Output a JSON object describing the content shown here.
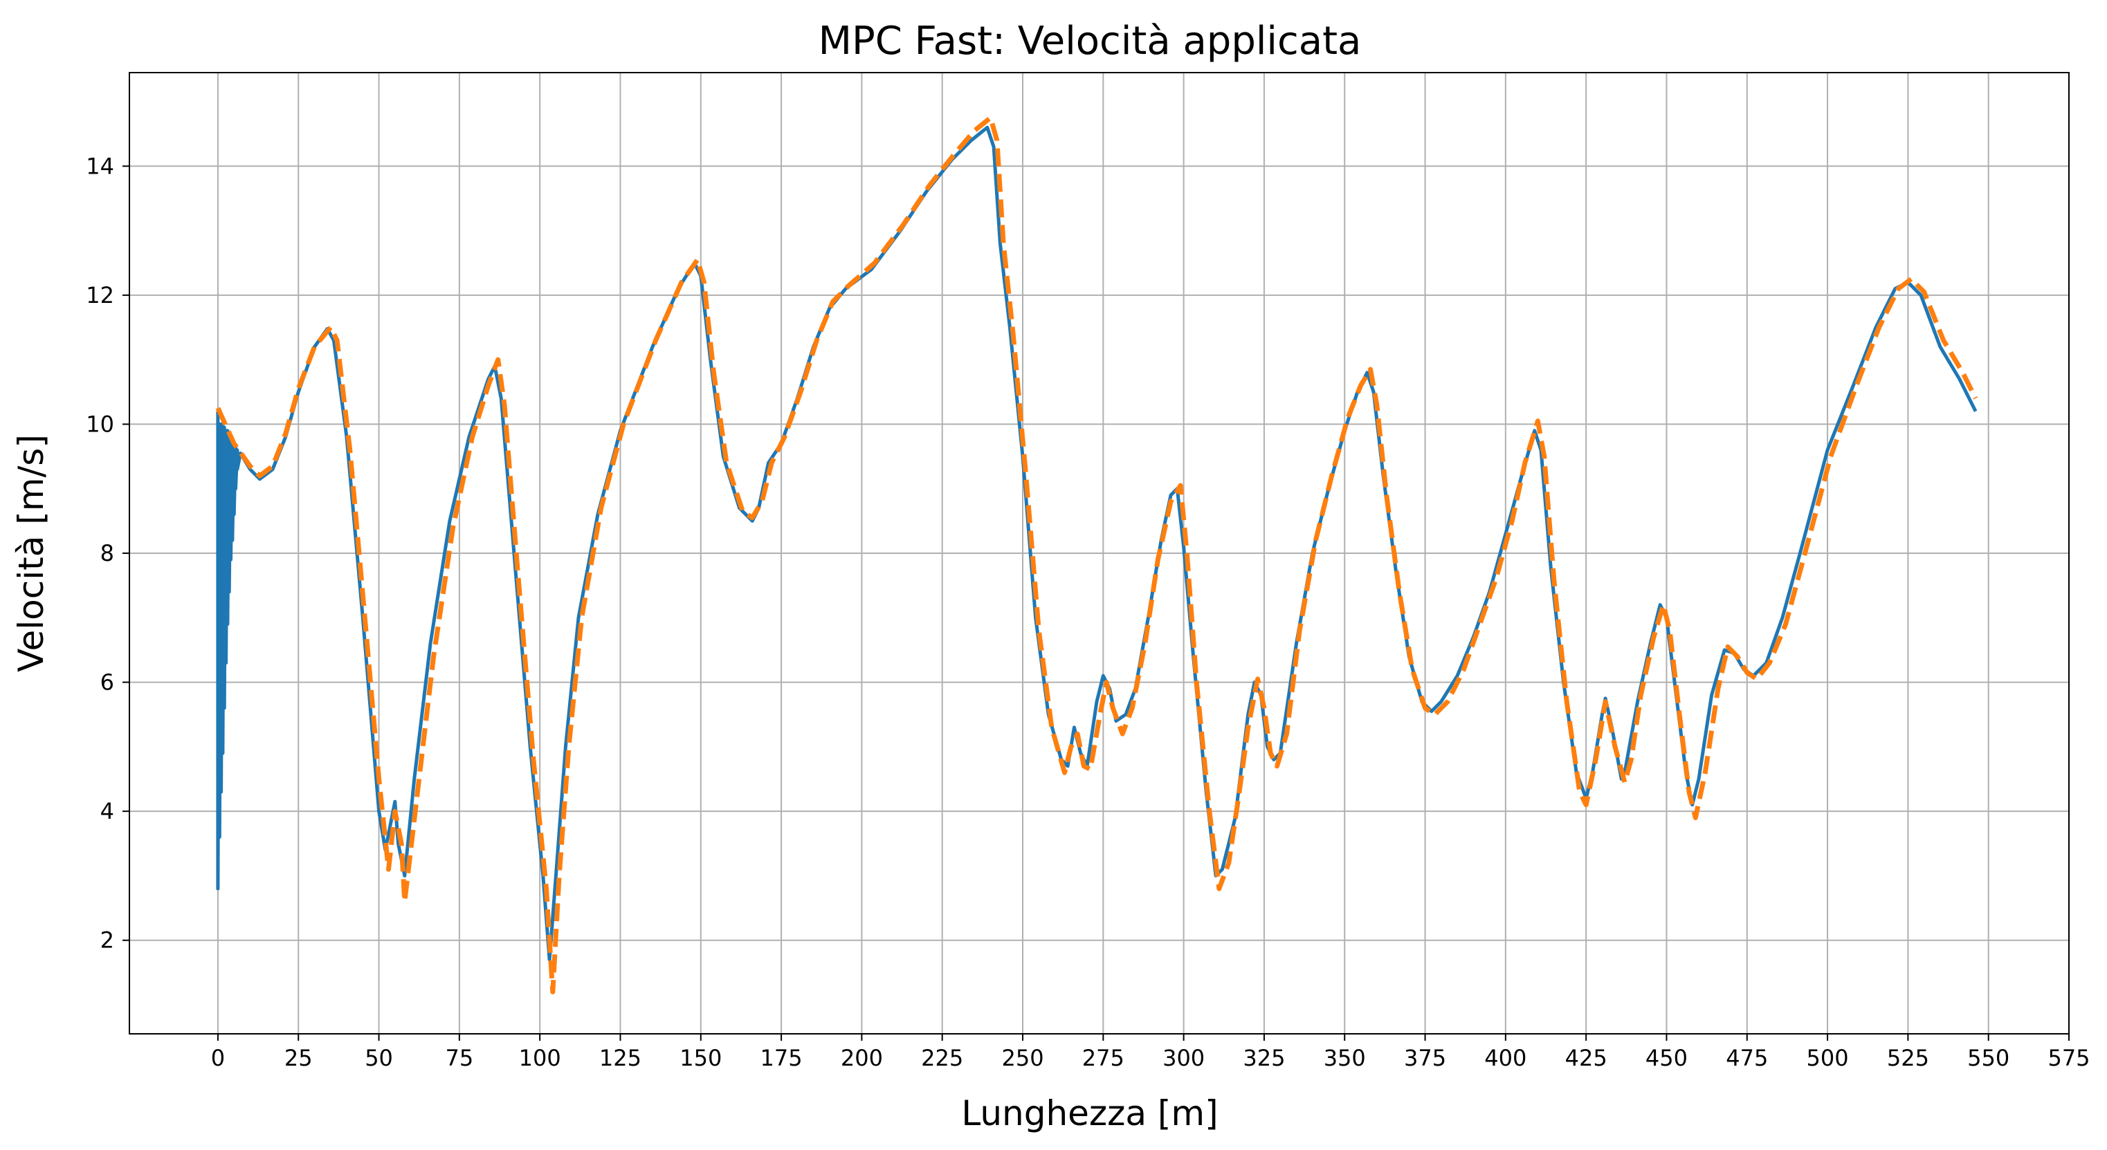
{
  "chart_data": {
    "type": "line",
    "title": "MPC Fast: Velocità applicata",
    "xlabel": "Lunghezza [m]",
    "ylabel": "Velocità [m/s]",
    "xlim": [
      -27.5,
      575
    ],
    "ylim": [
      0.55,
      15.45
    ],
    "xticks": [
      0,
      25,
      50,
      75,
      100,
      125,
      150,
      175,
      200,
      225,
      250,
      275,
      300,
      325,
      350,
      375,
      400,
      425,
      450,
      475,
      500,
      525,
      550,
      575
    ],
    "yticks": [
      2,
      4,
      6,
      8,
      10,
      12,
      14
    ],
    "grid": true,
    "series": [
      {
        "color": "#1f77b4",
        "style": "solid",
        "points": [
          [
            0,
            10.2
          ],
          [
            0,
            2.8
          ],
          [
            0.5,
            10.0
          ],
          [
            0.5,
            3.6
          ],
          [
            1,
            10.0
          ],
          [
            1,
            4.3
          ],
          [
            1.5,
            10.0
          ],
          [
            1.5,
            4.9
          ],
          [
            2,
            9.95
          ],
          [
            2,
            5.6
          ],
          [
            2.5,
            9.9
          ],
          [
            2.5,
            6.3
          ],
          [
            3,
            9.9
          ],
          [
            3,
            6.9
          ],
          [
            3.5,
            9.85
          ],
          [
            3.5,
            7.4
          ],
          [
            4,
            9.8
          ],
          [
            4,
            7.9
          ],
          [
            4.5,
            9.75
          ],
          [
            4.5,
            8.2
          ],
          [
            5,
            9.7
          ],
          [
            5,
            8.6
          ],
          [
            5.5,
            9.65
          ],
          [
            5.5,
            9.0
          ],
          [
            6,
            9.6
          ],
          [
            6,
            9.3
          ],
          [
            7,
            9.55
          ],
          [
            10,
            9.3
          ],
          [
            13,
            9.15
          ],
          [
            17,
            9.3
          ],
          [
            21,
            9.8
          ],
          [
            25,
            10.5
          ],
          [
            30,
            11.2
          ],
          [
            34,
            11.48
          ],
          [
            36,
            11.3
          ],
          [
            40,
            9.8
          ],
          [
            45,
            7.0
          ],
          [
            50,
            4.0
          ],
          [
            52,
            3.4
          ],
          [
            54,
            3.9
          ],
          [
            55,
            4.15
          ],
          [
            56,
            3.5
          ],
          [
            58,
            3.0
          ],
          [
            61,
            4.5
          ],
          [
            66,
            6.6
          ],
          [
            72,
            8.5
          ],
          [
            78,
            9.8
          ],
          [
            84,
            10.7
          ],
          [
            86,
            10.9
          ],
          [
            88,
            10.4
          ],
          [
            92,
            8.0
          ],
          [
            97,
            5.0
          ],
          [
            101,
            3.0
          ],
          [
            103,
            1.7
          ],
          [
            105,
            3.0
          ],
          [
            108,
            5.0
          ],
          [
            112,
            7.0
          ],
          [
            118,
            8.6
          ],
          [
            125,
            9.9
          ],
          [
            135,
            11.2
          ],
          [
            143,
            12.1
          ],
          [
            148,
            12.5
          ],
          [
            150,
            12.3
          ],
          [
            153,
            11.0
          ],
          [
            157,
            9.5
          ],
          [
            162,
            8.7
          ],
          [
            166,
            8.5
          ],
          [
            168,
            8.7
          ],
          [
            171,
            9.4
          ],
          [
            175,
            9.7
          ],
          [
            180,
            10.4
          ],
          [
            185,
            11.2
          ],
          [
            190,
            11.8
          ],
          [
            195,
            12.1
          ],
          [
            203,
            12.4
          ],
          [
            212,
            13.0
          ],
          [
            220,
            13.6
          ],
          [
            228,
            14.1
          ],
          [
            234,
            14.4
          ],
          [
            239,
            14.6
          ],
          [
            241,
            14.3
          ],
          [
            243,
            12.8
          ],
          [
            246,
            11.5
          ],
          [
            250,
            9.5
          ],
          [
            254,
            7.0
          ],
          [
            258,
            5.5
          ],
          [
            262,
            4.8
          ],
          [
            264,
            4.7
          ],
          [
            266,
            5.3
          ],
          [
            268,
            4.9
          ],
          [
            270,
            4.7
          ],
          [
            273,
            5.7
          ],
          [
            275,
            6.1
          ],
          [
            277,
            5.9
          ],
          [
            279,
            5.4
          ],
          [
            282,
            5.5
          ],
          [
            285,
            5.9
          ],
          [
            289,
            7.0
          ],
          [
            293,
            8.2
          ],
          [
            296,
            8.9
          ],
          [
            298,
            9.0
          ],
          [
            300,
            8.1
          ],
          [
            303,
            6.4
          ],
          [
            307,
            4.3
          ],
          [
            310,
            3.0
          ],
          [
            312,
            3.1
          ],
          [
            316,
            3.9
          ],
          [
            320,
            5.5
          ],
          [
            322,
            6.0
          ],
          [
            324,
            5.8
          ],
          [
            326,
            5.0
          ],
          [
            328,
            4.8
          ],
          [
            330,
            4.9
          ],
          [
            335,
            6.6
          ],
          [
            340,
            8.0
          ],
          [
            345,
            9.0
          ],
          [
            350,
            9.9
          ],
          [
            354,
            10.5
          ],
          [
            357,
            10.8
          ],
          [
            359,
            10.5
          ],
          [
            362,
            9.2
          ],
          [
            366,
            7.7
          ],
          [
            370,
            6.4
          ],
          [
            374,
            5.7
          ],
          [
            377,
            5.55
          ],
          [
            380,
            5.7
          ],
          [
            385,
            6.1
          ],
          [
            390,
            6.7
          ],
          [
            395,
            7.4
          ],
          [
            400,
            8.3
          ],
          [
            405,
            9.2
          ],
          [
            409,
            9.9
          ],
          [
            411,
            9.6
          ],
          [
            414,
            7.8
          ],
          [
            418,
            6.0
          ],
          [
            422,
            4.6
          ],
          [
            425,
            4.2
          ],
          [
            427,
            4.6
          ],
          [
            430,
            5.5
          ],
          [
            431,
            5.75
          ],
          [
            433,
            5.3
          ],
          [
            436,
            4.5
          ],
          [
            437,
            4.6
          ],
          [
            441,
            5.7
          ],
          [
            445,
            6.6
          ],
          [
            448,
            7.2
          ],
          [
            450,
            7.0
          ],
          [
            453,
            5.8
          ],
          [
            456,
            4.6
          ],
          [
            458,
            4.1
          ],
          [
            460,
            4.5
          ],
          [
            464,
            5.8
          ],
          [
            468,
            6.5
          ],
          [
            471,
            6.45
          ],
          [
            474,
            6.2
          ],
          [
            477,
            6.1
          ],
          [
            481,
            6.3
          ],
          [
            486,
            7.0
          ],
          [
            492,
            8.1
          ],
          [
            500,
            9.6
          ],
          [
            508,
            10.6
          ],
          [
            515,
            11.5
          ],
          [
            521,
            12.1
          ],
          [
            525,
            12.2
          ],
          [
            529,
            12.0
          ],
          [
            535,
            11.2
          ],
          [
            541,
            10.7
          ],
          [
            546,
            10.2
          ]
        ]
      },
      {
        "color": "#ff7f0e",
        "style": "dashed",
        "points": [
          [
            0,
            10.25
          ],
          [
            5,
            9.7
          ],
          [
            10,
            9.35
          ],
          [
            13,
            9.2
          ],
          [
            17,
            9.35
          ],
          [
            21,
            9.85
          ],
          [
            25,
            10.55
          ],
          [
            30,
            11.2
          ],
          [
            35,
            11.5
          ],
          [
            37,
            11.3
          ],
          [
            41,
            9.6
          ],
          [
            46,
            6.8
          ],
          [
            50,
            4.5
          ],
          [
            53,
            3.1
          ],
          [
            55,
            4.0
          ],
          [
            57,
            3.5
          ],
          [
            58,
            2.6
          ],
          [
            62,
            4.3
          ],
          [
            67,
            6.4
          ],
          [
            73,
            8.4
          ],
          [
            79,
            9.8
          ],
          [
            84,
            10.6
          ],
          [
            87,
            11.0
          ],
          [
            89,
            10.3
          ],
          [
            93,
            7.8
          ],
          [
            98,
            4.8
          ],
          [
            102,
            2.8
          ],
          [
            104,
            1.2
          ],
          [
            106,
            3.0
          ],
          [
            109,
            5.0
          ],
          [
            113,
            7.0
          ],
          [
            119,
            8.7
          ],
          [
            126,
            10.0
          ],
          [
            136,
            11.3
          ],
          [
            144,
            12.2
          ],
          [
            149,
            12.55
          ],
          [
            151,
            12.2
          ],
          [
            154,
            10.8
          ],
          [
            158,
            9.4
          ],
          [
            163,
            8.65
          ],
          [
            166,
            8.55
          ],
          [
            169,
            8.8
          ],
          [
            172,
            9.4
          ],
          [
            176,
            9.8
          ],
          [
            181,
            10.5
          ],
          [
            186,
            11.3
          ],
          [
            191,
            11.9
          ],
          [
            196,
            12.15
          ],
          [
            204,
            12.5
          ],
          [
            213,
            13.1
          ],
          [
            221,
            13.7
          ],
          [
            229,
            14.2
          ],
          [
            235,
            14.55
          ],
          [
            240,
            14.75
          ],
          [
            242,
            14.4
          ],
          [
            244,
            12.8
          ],
          [
            247,
            11.4
          ],
          [
            251,
            9.2
          ],
          [
            255,
            6.8
          ],
          [
            259,
            5.3
          ],
          [
            263,
            4.6
          ],
          [
            265,
            5.0
          ],
          [
            267,
            5.2
          ],
          [
            269,
            4.7
          ],
          [
            271,
            4.65
          ],
          [
            274,
            5.5
          ],
          [
            276,
            6.0
          ],
          [
            278,
            5.6
          ],
          [
            281,
            5.2
          ],
          [
            284,
            5.6
          ],
          [
            288,
            6.6
          ],
          [
            292,
            7.9
          ],
          [
            296,
            8.8
          ],
          [
            299,
            9.05
          ],
          [
            301,
            8.0
          ],
          [
            304,
            6.0
          ],
          [
            308,
            4.0
          ],
          [
            311,
            2.8
          ],
          [
            314,
            3.2
          ],
          [
            317,
            4.2
          ],
          [
            320,
            5.3
          ],
          [
            323,
            6.05
          ],
          [
            325,
            5.6
          ],
          [
            327,
            4.9
          ],
          [
            329,
            4.7
          ],
          [
            332,
            5.2
          ],
          [
            336,
            6.8
          ],
          [
            341,
            8.2
          ],
          [
            346,
            9.2
          ],
          [
            351,
            10.1
          ],
          [
            355,
            10.6
          ],
          [
            358,
            10.85
          ],
          [
            360,
            10.3
          ],
          [
            363,
            8.9
          ],
          [
            367,
            7.4
          ],
          [
            371,
            6.2
          ],
          [
            375,
            5.6
          ],
          [
            378,
            5.5
          ],
          [
            382,
            5.7
          ],
          [
            387,
            6.2
          ],
          [
            392,
            6.9
          ],
          [
            397,
            7.6
          ],
          [
            402,
            8.5
          ],
          [
            406,
            9.4
          ],
          [
            410,
            10.05
          ],
          [
            412,
            9.5
          ],
          [
            415,
            7.6
          ],
          [
            419,
            5.7
          ],
          [
            423,
            4.3
          ],
          [
            425,
            4.1
          ],
          [
            428,
            4.8
          ],
          [
            431,
            5.7
          ],
          [
            434,
            5.0
          ],
          [
            437,
            4.45
          ],
          [
            439,
            4.8
          ],
          [
            442,
            5.8
          ],
          [
            446,
            6.7
          ],
          [
            449,
            7.2
          ],
          [
            451,
            6.8
          ],
          [
            454,
            5.5
          ],
          [
            457,
            4.3
          ],
          [
            459,
            3.9
          ],
          [
            462,
            4.6
          ],
          [
            466,
            5.9
          ],
          [
            469,
            6.55
          ],
          [
            472,
            6.4
          ],
          [
            475,
            6.15
          ],
          [
            478,
            6.05
          ],
          [
            482,
            6.3
          ],
          [
            487,
            6.9
          ],
          [
            493,
            8.0
          ],
          [
            501,
            9.5
          ],
          [
            509,
            10.6
          ],
          [
            516,
            11.5
          ],
          [
            522,
            12.1
          ],
          [
            526,
            12.25
          ],
          [
            530,
            12.05
          ],
          [
            536,
            11.3
          ],
          [
            542,
            10.8
          ],
          [
            546,
            10.4
          ]
        ]
      }
    ]
  }
}
